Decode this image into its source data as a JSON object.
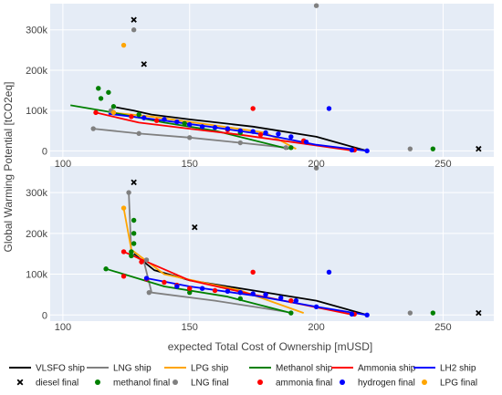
{
  "chart_data": {
    "type": "scatter",
    "xlabel": "expected Total Cost of Ownership [mUSD]",
    "ylabel": "Global Warming Potential [tCO2eq]",
    "xlim": [
      95,
      270
    ],
    "x_ticks": [
      "100",
      "150",
      "200",
      "250"
    ],
    "y_ticks": [
      "0",
      "100k",
      "200k",
      "300k"
    ],
    "ylim": [
      -15000,
      365000
    ],
    "grid": true,
    "legend_position": "bottom",
    "colors": {
      "VLSFO": "#000000",
      "LNG": "#808080",
      "LPG": "#FFA500",
      "Methanol": "#008000",
      "Ammonia": "#FF0000",
      "LH2": "#0000FF",
      "plot_bg": "#E5ECF6"
    },
    "legend": [
      {
        "label": "VLSFO ship",
        "kind": "line",
        "color": "#000000"
      },
      {
        "label": "LNG ship",
        "kind": "line",
        "color": "#808080"
      },
      {
        "label": "LPG ship",
        "kind": "line",
        "color": "#FFA500"
      },
      {
        "label": "Methanol ship",
        "kind": "line",
        "color": "#008000"
      },
      {
        "label": "Ammonia ship",
        "kind": "line",
        "color": "#FF0000"
      },
      {
        "label": "LH2 ship",
        "kind": "line",
        "color": "#0000FF"
      },
      {
        "label": "diesel final",
        "kind": "x",
        "color": "#000000"
      },
      {
        "label": "methanol final",
        "kind": "dot",
        "color": "#008000"
      },
      {
        "label": "LNG final",
        "kind": "dot",
        "color": "#808080"
      },
      {
        "label": "ammonia final",
        "kind": "dot",
        "color": "#FF0000"
      },
      {
        "label": "hydrogen final",
        "kind": "dot",
        "color": "#0000FF"
      },
      {
        "label": "LPG final",
        "kind": "dot",
        "color": "#FFA500"
      }
    ],
    "panels": [
      {
        "series": [
          {
            "name": "VLSFO ship",
            "type": "line",
            "color": "#000000",
            "points": [
              [
                121,
                108000
              ],
              [
                128,
                100000
              ],
              [
                135,
                90000
              ],
              [
                150,
                78000
              ],
              [
                175,
                60000
              ],
              [
                200,
                35000
              ],
              [
                220,
                0
              ]
            ]
          },
          {
            "name": "LNG ship",
            "type": "line",
            "color": "#808080",
            "points": [
              [
                112,
                55000
              ],
              [
                130,
                43000
              ],
              [
                150,
                33000
              ],
              [
                170,
                20000
              ],
              [
                188,
                8000
              ]
            ]
          },
          {
            "name": "LPG ship",
            "type": "line",
            "color": "#FFA500",
            "points": [
              [
                119,
                95000
              ],
              [
                135,
                85000
              ],
              [
                160,
                63000
              ],
              [
                180,
                45000
              ],
              [
                192,
                5000
              ]
            ]
          },
          {
            "name": "Methanol ship",
            "type": "line",
            "color": "#008000",
            "points": [
              [
                103,
                113000
              ],
              [
                117,
                98000
              ],
              [
                140,
                70000
              ],
              [
                160,
                50000
              ],
              [
                189,
                5000
              ]
            ]
          },
          {
            "name": "Ammonia ship",
            "type": "line",
            "color": "#FF0000",
            "points": [
              [
                113,
                95000
              ],
              [
                130,
                70000
              ],
              [
                150,
                55000
              ],
              [
                170,
                40000
              ],
              [
                215,
                0
              ]
            ]
          },
          {
            "name": "LH2 ship",
            "type": "line",
            "color": "#0000FF",
            "points": [
              [
                118,
                92000
              ],
              [
                140,
                75000
              ],
              [
                160,
                58000
              ],
              [
                180,
                40000
              ],
              [
                200,
                15000
              ],
              [
                220,
                0
              ]
            ]
          },
          {
            "name": "methanol final",
            "type": "points",
            "marker": "dot",
            "color": "#008000",
            "points": [
              [
                114,
                155000
              ],
              [
                118,
                145000
              ],
              [
                115,
                130000
              ],
              [
                120,
                110000
              ],
              [
                130,
                90000
              ],
              [
                148,
                68000
              ],
              [
                170,
                45000
              ],
              [
                190,
                8000
              ],
              [
                246,
                5000
              ]
            ]
          },
          {
            "name": "ammonia final",
            "type": "points",
            "marker": "dot",
            "color": "#FF0000",
            "points": [
              [
                113,
                95000
              ],
              [
                127,
                85000
              ],
              [
                137,
                75000
              ],
              [
                150,
                65000
              ],
              [
                165,
                52000
              ],
              [
                178,
                40000
              ],
              [
                195,
                25000
              ],
              [
                175,
                105000
              ],
              [
                215,
                2000
              ]
            ]
          },
          {
            "name": "hydrogen final",
            "type": "points",
            "marker": "dot",
            "color": "#0000FF",
            "points": [
              [
                120,
                95000
              ],
              [
                132,
                82000
              ],
              [
                140,
                78000
              ],
              [
                145,
                72000
              ],
              [
                150,
                65000
              ],
              [
                155,
                60000
              ],
              [
                160,
                58000
              ],
              [
                165,
                55000
              ],
              [
                170,
                50000
              ],
              [
                175,
                48000
              ],
              [
                180,
                45000
              ],
              [
                185,
                42000
              ],
              [
                190,
                35000
              ],
              [
                196,
                22000
              ],
              [
                205,
                105000
              ],
              [
                214,
                2000
              ],
              [
                220,
                0
              ]
            ]
          },
          {
            "name": "LNG final",
            "type": "points",
            "marker": "dot",
            "color": "#808080",
            "points": [
              [
                112,
                55000
              ],
              [
                130,
                43000
              ],
              [
                150,
                33000
              ],
              [
                170,
                20000
              ],
              [
                188,
                8000
              ],
              [
                200,
                360000
              ],
              [
                237,
                5000
              ],
              [
                128,
                300000
              ],
              [
                119,
                100000
              ]
            ]
          },
          {
            "name": "LPG final",
            "type": "points",
            "marker": "dot",
            "color": "#FFA500",
            "points": [
              [
                124,
                262000
              ],
              [
                120,
                95000
              ]
            ]
          },
          {
            "name": "diesel final",
            "type": "points",
            "marker": "x",
            "color": "#000000",
            "points": [
              [
                128,
                325000
              ],
              [
                132,
                215000
              ],
              [
                264,
                5000
              ]
            ]
          }
        ]
      },
      {
        "series": [
          {
            "name": "VLSFO ship",
            "type": "line",
            "color": "#000000",
            "points": [
              [
                128,
                150000
              ],
              [
                136,
                110000
              ],
              [
                150,
                85000
              ],
              [
                175,
                60000
              ],
              [
                200,
                35000
              ],
              [
                220,
                0
              ]
            ]
          },
          {
            "name": "LNG ship",
            "type": "line",
            "color": "#808080",
            "points": [
              [
                126,
                300000
              ],
              [
                127,
                150000
              ],
              [
                132,
                130000
              ],
              [
                135,
                55000
              ],
              [
                160,
                35000
              ],
              [
                188,
                8000
              ]
            ]
          },
          {
            "name": "LPG ship",
            "type": "line",
            "color": "#FFA500",
            "points": [
              [
                124,
                262000
              ],
              [
                127,
                160000
              ],
              [
                140,
                100000
              ],
              [
                170,
                60000
              ],
              [
                195,
                5000
              ]
            ]
          },
          {
            "name": "Methanol ship",
            "type": "line",
            "color": "#008000",
            "points": [
              [
                117,
                113000
              ],
              [
                140,
                70000
              ],
              [
                165,
                45000
              ],
              [
                190,
                5000
              ]
            ]
          },
          {
            "name": "Ammonia ship",
            "type": "line",
            "color": "#FF0000",
            "points": [
              [
                124,
                155000
              ],
              [
                150,
                85000
              ],
              [
                175,
                50000
              ],
              [
                215,
                0
              ]
            ]
          },
          {
            "name": "LH2 ship",
            "type": "line",
            "color": "#0000FF",
            "points": [
              [
                133,
                90000
              ],
              [
                150,
                70000
              ],
              [
                175,
                48000
              ],
              [
                200,
                20000
              ],
              [
                220,
                0
              ]
            ]
          },
          {
            "name": "methanol final",
            "type": "points",
            "marker": "dot",
            "color": "#008000",
            "points": [
              [
                128,
                232000
              ],
              [
                128,
                200000
              ],
              [
                128,
                175000
              ],
              [
                127,
                155000
              ],
              [
                127,
                145000
              ],
              [
                117,
                113000
              ],
              [
                150,
                55000
              ],
              [
                170,
                40000
              ],
              [
                190,
                5000
              ],
              [
                246,
                5000
              ]
            ]
          },
          {
            "name": "ammonia final",
            "type": "points",
            "marker": "dot",
            "color": "#FF0000",
            "points": [
              [
                124,
                155000
              ],
              [
                131,
                130000
              ],
              [
                124,
                95000
              ],
              [
                133,
                88000
              ],
              [
                140,
                80000
              ],
              [
                145,
                73000
              ],
              [
                150,
                65000
              ],
              [
                160,
                60000
              ],
              [
                170,
                55000
              ],
              [
                180,
                50000
              ],
              [
                190,
                35000
              ],
              [
                175,
                105000
              ],
              [
                215,
                2000
              ]
            ]
          },
          {
            "name": "hydrogen final",
            "type": "points",
            "marker": "dot",
            "color": "#0000FF",
            "points": [
              [
                133,
                90000
              ],
              [
                145,
                70000
              ],
              [
                155,
                65000
              ],
              [
                165,
                58000
              ],
              [
                170,
                55000
              ],
              [
                175,
                52000
              ],
              [
                180,
                50000
              ],
              [
                186,
                42000
              ],
              [
                192,
                35000
              ],
              [
                200,
                20000
              ],
              [
                205,
                105000
              ],
              [
                214,
                2000
              ],
              [
                220,
                0
              ]
            ]
          },
          {
            "name": "LNG final",
            "type": "points",
            "marker": "dot",
            "color": "#808080",
            "points": [
              [
                126,
                300000
              ],
              [
                200,
                360000
              ],
              [
                237,
                5000
              ],
              [
                133,
                135000
              ],
              [
                134,
                55000
              ]
            ]
          },
          {
            "name": "LPG final",
            "type": "points",
            "marker": "dot",
            "color": "#FFA500",
            "points": [
              [
                124,
                262000
              ]
            ]
          },
          {
            "name": "diesel final",
            "type": "points",
            "marker": "x",
            "color": "#000000",
            "points": [
              [
                128,
                325000
              ],
              [
                152,
                215000
              ],
              [
                264,
                5000
              ]
            ]
          }
        ]
      }
    ]
  }
}
